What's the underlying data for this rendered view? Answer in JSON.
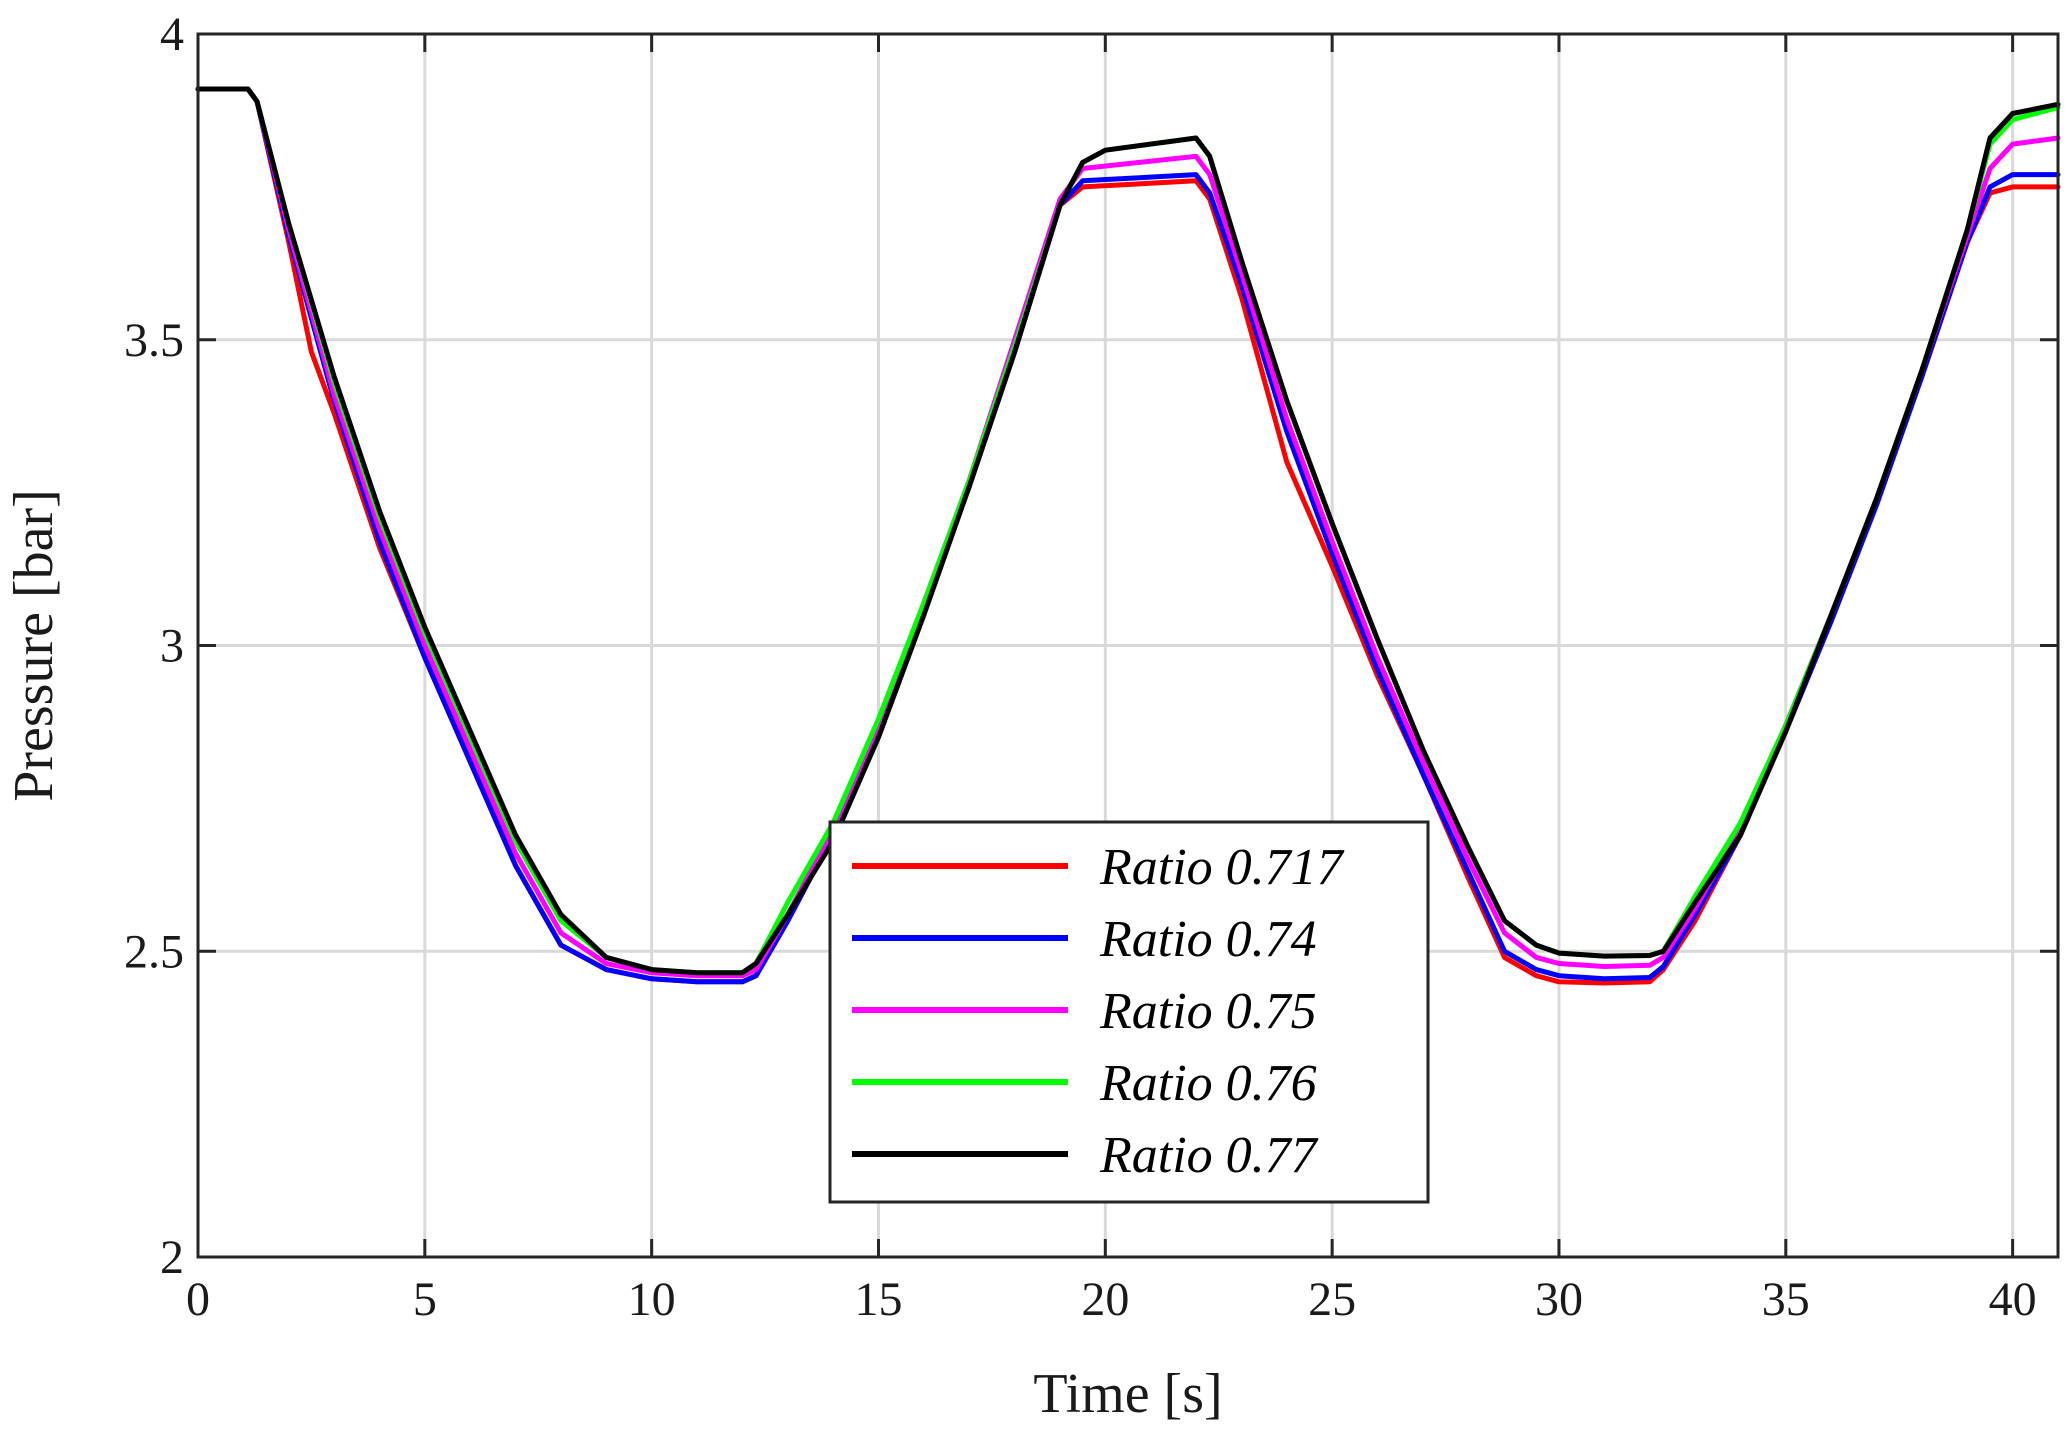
{
  "chart_data": {
    "type": "line",
    "title": "",
    "xlabel": "Time [s]",
    "ylabel": "Pressure [bar]",
    "xlim": [
      0,
      41
    ],
    "ylim": [
      2,
      4
    ],
    "xticks": [
      0,
      5,
      10,
      15,
      20,
      25,
      30,
      35,
      40
    ],
    "yticks": [
      2,
      2.5,
      3,
      3.5,
      4
    ],
    "xtick_labels": [
      "0",
      "5",
      "10",
      "15",
      "20",
      "25",
      "30",
      "35",
      "40"
    ],
    "ytick_labels": [
      "2",
      "2.5",
      "3",
      "3.5",
      "4"
    ],
    "grid": true,
    "legend_position": "bottom-center",
    "series": [
      {
        "name": "Ratio 0.717",
        "color": "#ff0000",
        "points": [
          [
            0,
            3.91
          ],
          [
            1.1,
            3.91
          ],
          [
            1.3,
            3.89
          ],
          [
            2,
            3.66
          ],
          [
            2.5,
            3.48
          ],
          [
            3,
            3.38
          ],
          [
            4,
            3.16
          ],
          [
            5,
            2.98
          ],
          [
            6,
            2.81
          ],
          [
            7,
            2.64
          ],
          [
            8,
            2.51
          ],
          [
            9,
            2.47
          ],
          [
            10,
            2.455
          ],
          [
            11,
            2.45
          ],
          [
            12,
            2.45
          ],
          [
            12.3,
            2.46
          ],
          [
            13,
            2.55
          ],
          [
            14,
            2.69
          ],
          [
            15,
            2.86
          ],
          [
            16,
            3.06
          ],
          [
            17,
            3.26
          ],
          [
            18,
            3.48
          ],
          [
            19,
            3.72
          ],
          [
            19.5,
            3.75
          ],
          [
            22,
            3.76
          ],
          [
            22.3,
            3.73
          ],
          [
            23,
            3.57
          ],
          [
            24,
            3.3
          ],
          [
            25,
            3.13
          ],
          [
            26,
            2.95
          ],
          [
            27,
            2.79
          ],
          [
            28,
            2.62
          ],
          [
            28.8,
            2.49
          ],
          [
            29.5,
            2.46
          ],
          [
            30,
            2.45
          ],
          [
            31,
            2.448
          ],
          [
            32,
            2.45
          ],
          [
            32.3,
            2.47
          ],
          [
            33,
            2.55
          ],
          [
            34,
            2.69
          ],
          [
            35,
            2.86
          ],
          [
            36,
            3.04
          ],
          [
            37,
            3.23
          ],
          [
            38,
            3.44
          ],
          [
            39,
            3.66
          ],
          [
            39.5,
            3.74
          ],
          [
            40,
            3.75
          ],
          [
            41,
            3.75
          ]
        ]
      },
      {
        "name": "Ratio 0.74",
        "color": "#0000ff",
        "points": [
          [
            0,
            3.91
          ],
          [
            1.1,
            3.91
          ],
          [
            1.3,
            3.89
          ],
          [
            2,
            3.67
          ],
          [
            3,
            3.4
          ],
          [
            4,
            3.17
          ],
          [
            5,
            2.98
          ],
          [
            6,
            2.81
          ],
          [
            7,
            2.64
          ],
          [
            8,
            2.51
          ],
          [
            9,
            2.47
          ],
          [
            10,
            2.455
          ],
          [
            11,
            2.45
          ],
          [
            12,
            2.45
          ],
          [
            12.3,
            2.46
          ],
          [
            13,
            2.55
          ],
          [
            14,
            2.69
          ],
          [
            15,
            2.86
          ],
          [
            16,
            3.06
          ],
          [
            17,
            3.26
          ],
          [
            18,
            3.48
          ],
          [
            19,
            3.72
          ],
          [
            19.5,
            3.76
          ],
          [
            22,
            3.77
          ],
          [
            22.3,
            3.74
          ],
          [
            23,
            3.59
          ],
          [
            24,
            3.35
          ],
          [
            25,
            3.15
          ],
          [
            26,
            2.96
          ],
          [
            27,
            2.79
          ],
          [
            28,
            2.63
          ],
          [
            28.8,
            2.5
          ],
          [
            29.5,
            2.47
          ],
          [
            30,
            2.46
          ],
          [
            31,
            2.455
          ],
          [
            32,
            2.457
          ],
          [
            32.3,
            2.475
          ],
          [
            33,
            2.56
          ],
          [
            34,
            2.69
          ],
          [
            35,
            2.86
          ],
          [
            36,
            3.04
          ],
          [
            37,
            3.23
          ],
          [
            38,
            3.44
          ],
          [
            39,
            3.66
          ],
          [
            39.5,
            3.75
          ],
          [
            40,
            3.77
          ],
          [
            41,
            3.77
          ]
        ]
      },
      {
        "name": "Ratio 0.75",
        "color": "#ff00ff",
        "points": [
          [
            0,
            3.91
          ],
          [
            1.1,
            3.91
          ],
          [
            1.3,
            3.89
          ],
          [
            2,
            3.68
          ],
          [
            3,
            3.41
          ],
          [
            4,
            3.19
          ],
          [
            5,
            3.0
          ],
          [
            6,
            2.83
          ],
          [
            7,
            2.66
          ],
          [
            8,
            2.53
          ],
          [
            9,
            2.48
          ],
          [
            10,
            2.465
          ],
          [
            11,
            2.46
          ],
          [
            12,
            2.46
          ],
          [
            12.3,
            2.47
          ],
          [
            13,
            2.56
          ],
          [
            14,
            2.7
          ],
          [
            15,
            2.87
          ],
          [
            16,
            3.07
          ],
          [
            17,
            3.27
          ],
          [
            18,
            3.5
          ],
          [
            19,
            3.73
          ],
          [
            19.5,
            3.78
          ],
          [
            22,
            3.8
          ],
          [
            22.3,
            3.77
          ],
          [
            23,
            3.61
          ],
          [
            24,
            3.37
          ],
          [
            25,
            3.17
          ],
          [
            26,
            2.98
          ],
          [
            27,
            2.81
          ],
          [
            28,
            2.65
          ],
          [
            28.8,
            2.53
          ],
          [
            29.5,
            2.49
          ],
          [
            30,
            2.48
          ],
          [
            31,
            2.475
          ],
          [
            32,
            2.477
          ],
          [
            32.3,
            2.49
          ],
          [
            33,
            2.57
          ],
          [
            34,
            2.7
          ],
          [
            35,
            2.87
          ],
          [
            36,
            3.05
          ],
          [
            37,
            3.24
          ],
          [
            38,
            3.45
          ],
          [
            39,
            3.67
          ],
          [
            39.5,
            3.78
          ],
          [
            40,
            3.82
          ],
          [
            41,
            3.83
          ]
        ]
      },
      {
        "name": "Ratio 0.76",
        "color": "#00ff00",
        "points": [
          [
            0,
            3.91
          ],
          [
            1.1,
            3.91
          ],
          [
            1.3,
            3.89
          ],
          [
            2,
            3.69
          ],
          [
            3,
            3.43
          ],
          [
            4,
            3.21
          ],
          [
            5,
            3.02
          ],
          [
            6,
            2.85
          ],
          [
            7,
            2.68
          ],
          [
            8,
            2.55
          ],
          [
            9,
            2.49
          ],
          [
            10,
            2.47
          ],
          [
            11,
            2.465
          ],
          [
            12,
            2.465
          ],
          [
            12.3,
            2.48
          ],
          [
            13,
            2.58
          ],
          [
            14,
            2.71
          ],
          [
            15,
            2.88
          ],
          [
            16,
            3.07
          ],
          [
            17,
            3.27
          ],
          [
            18,
            3.49
          ],
          [
            19,
            3.72
          ],
          [
            19.5,
            3.79
          ],
          [
            20,
            3.81
          ],
          [
            22,
            3.83
          ],
          [
            22.3,
            3.8
          ],
          [
            23,
            3.63
          ],
          [
            24,
            3.4
          ],
          [
            25,
            3.2
          ],
          [
            26,
            3.01
          ],
          [
            27,
            2.83
          ],
          [
            28,
            2.67
          ],
          [
            28.8,
            2.55
          ],
          [
            29.5,
            2.51
          ],
          [
            30,
            2.497
          ],
          [
            31,
            2.492
          ],
          [
            32,
            2.493
          ],
          [
            32.3,
            2.5
          ],
          [
            33,
            2.59
          ],
          [
            34,
            2.71
          ],
          [
            35,
            2.87
          ],
          [
            36,
            3.05
          ],
          [
            37,
            3.24
          ],
          [
            38,
            3.45
          ],
          [
            39,
            3.68
          ],
          [
            39.5,
            3.82
          ],
          [
            40,
            3.86
          ],
          [
            41,
            3.88
          ]
        ]
      },
      {
        "name": "Ratio 0.77",
        "color": "#000000",
        "points": [
          [
            0,
            3.91
          ],
          [
            1.1,
            3.91
          ],
          [
            1.3,
            3.89
          ],
          [
            2,
            3.69
          ],
          [
            3,
            3.44
          ],
          [
            4,
            3.22
          ],
          [
            5,
            3.03
          ],
          [
            6,
            2.86
          ],
          [
            7,
            2.69
          ],
          [
            8,
            2.56
          ],
          [
            9,
            2.49
          ],
          [
            10,
            2.47
          ],
          [
            11,
            2.465
          ],
          [
            12,
            2.465
          ],
          [
            12.3,
            2.48
          ],
          [
            13,
            2.56
          ],
          [
            14,
            2.68
          ],
          [
            15,
            2.85
          ],
          [
            16,
            3.05
          ],
          [
            17,
            3.26
          ],
          [
            18,
            3.48
          ],
          [
            19,
            3.72
          ],
          [
            19.5,
            3.79
          ],
          [
            20,
            3.81
          ],
          [
            22,
            3.83
          ],
          [
            22.3,
            3.8
          ],
          [
            23,
            3.63
          ],
          [
            24,
            3.4
          ],
          [
            25,
            3.2
          ],
          [
            26,
            3.01
          ],
          [
            27,
            2.83
          ],
          [
            28,
            2.67
          ],
          [
            28.8,
            2.55
          ],
          [
            29.5,
            2.51
          ],
          [
            30,
            2.497
          ],
          [
            31,
            2.492
          ],
          [
            32,
            2.493
          ],
          [
            32.3,
            2.5
          ],
          [
            33,
            2.58
          ],
          [
            34,
            2.69
          ],
          [
            35,
            2.86
          ],
          [
            36,
            3.05
          ],
          [
            37,
            3.24
          ],
          [
            38,
            3.45
          ],
          [
            39,
            3.68
          ],
          [
            39.5,
            3.83
          ],
          [
            40,
            3.87
          ],
          [
            41,
            3.885
          ]
        ]
      }
    ]
  }
}
